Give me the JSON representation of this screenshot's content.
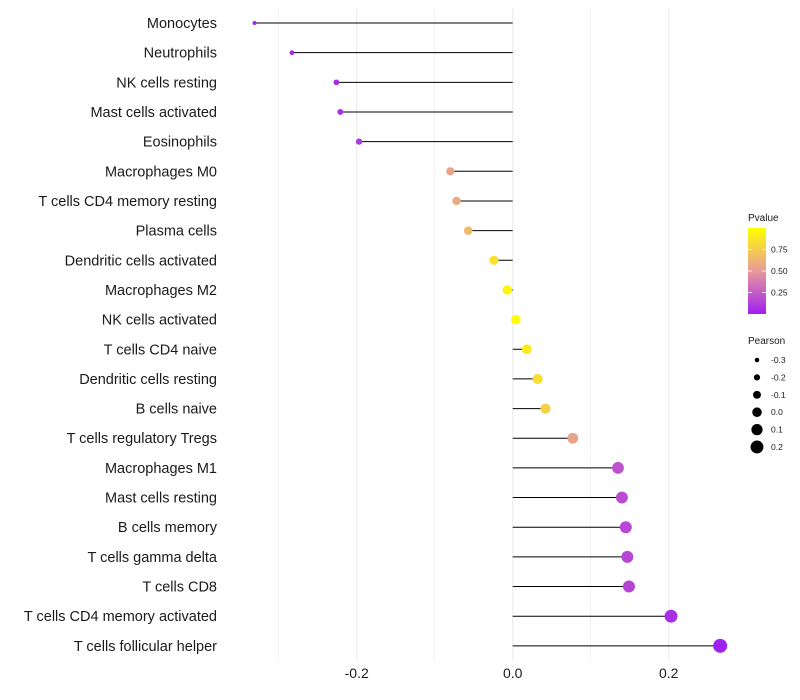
{
  "chart_data": {
    "type": "lollipop",
    "title": "",
    "xlabel": "",
    "ylabel": "",
    "xlim": [
      -0.365,
      0.285
    ],
    "x_ticks": [
      {
        "value": -0.2,
        "label": "-0.2"
      },
      {
        "value": 0.0,
        "label": "0.0"
      },
      {
        "value": 0.2,
        "label": "0.2"
      }
    ],
    "grid": true,
    "categories": [
      "Monocytes",
      "Neutrophils",
      "NK cells resting",
      "Mast cells activated",
      "Eosinophils",
      "Macrophages M0",
      "T cells CD4 memory resting",
      "Plasma cells",
      "Dendritic cells activated",
      "Macrophages M2",
      "NK cells activated",
      "T cells CD4 naive",
      "Dendritic cells resting",
      "B cells naive",
      "T cells regulatory  Tregs ",
      "Macrophages M1",
      "Mast cells resting",
      "B cells memory",
      "T cells gamma delta",
      "T cells CD8",
      "T cells CD4 memory activated",
      "T cells follicular helper"
    ],
    "pearson": [
      -0.331,
      -0.283,
      -0.226,
      -0.221,
      -0.197,
      -0.08,
      -0.072,
      -0.057,
      -0.024,
      -0.007,
      0.004,
      0.018,
      0.032,
      0.042,
      0.077,
      0.135,
      0.14,
      0.145,
      0.147,
      0.149,
      0.203,
      0.266
    ],
    "pvalue": [
      0.02,
      0.03,
      0.05,
      0.06,
      0.1,
      0.55,
      0.58,
      0.66,
      0.85,
      0.95,
      0.98,
      0.9,
      0.83,
      0.77,
      0.55,
      0.2,
      0.18,
      0.16,
      0.16,
      0.15,
      0.06,
      0.01
    ],
    "legend": {
      "pvalue": {
        "title": "Pvalue",
        "range": [
          0.0,
          1.0
        ],
        "breaks": [
          {
            "value": 0.75,
            "label": "0.75"
          },
          {
            "value": 0.5,
            "label": "0.50"
          },
          {
            "value": 0.25,
            "label": "0.25"
          }
        ],
        "colors": {
          "low": "#a020f0",
          "mid": "#e89a9a",
          "high": "#ffff00"
        }
      },
      "pearson": {
        "title": "Pearson",
        "breaks": [
          {
            "value": -0.3,
            "label": "-0.3"
          },
          {
            "value": -0.2,
            "label": "-0.2"
          },
          {
            "value": -0.1,
            "label": "-0.1"
          },
          {
            "value": 0.0,
            "label": "0.0"
          },
          {
            "value": 0.1,
            "label": "0.1"
          },
          {
            "value": 0.2,
            "label": "0.2"
          }
        ]
      }
    },
    "colors": {
      "stem": "#000000",
      "grid": "#ebebeb",
      "text": "#1a1a1a"
    }
  }
}
